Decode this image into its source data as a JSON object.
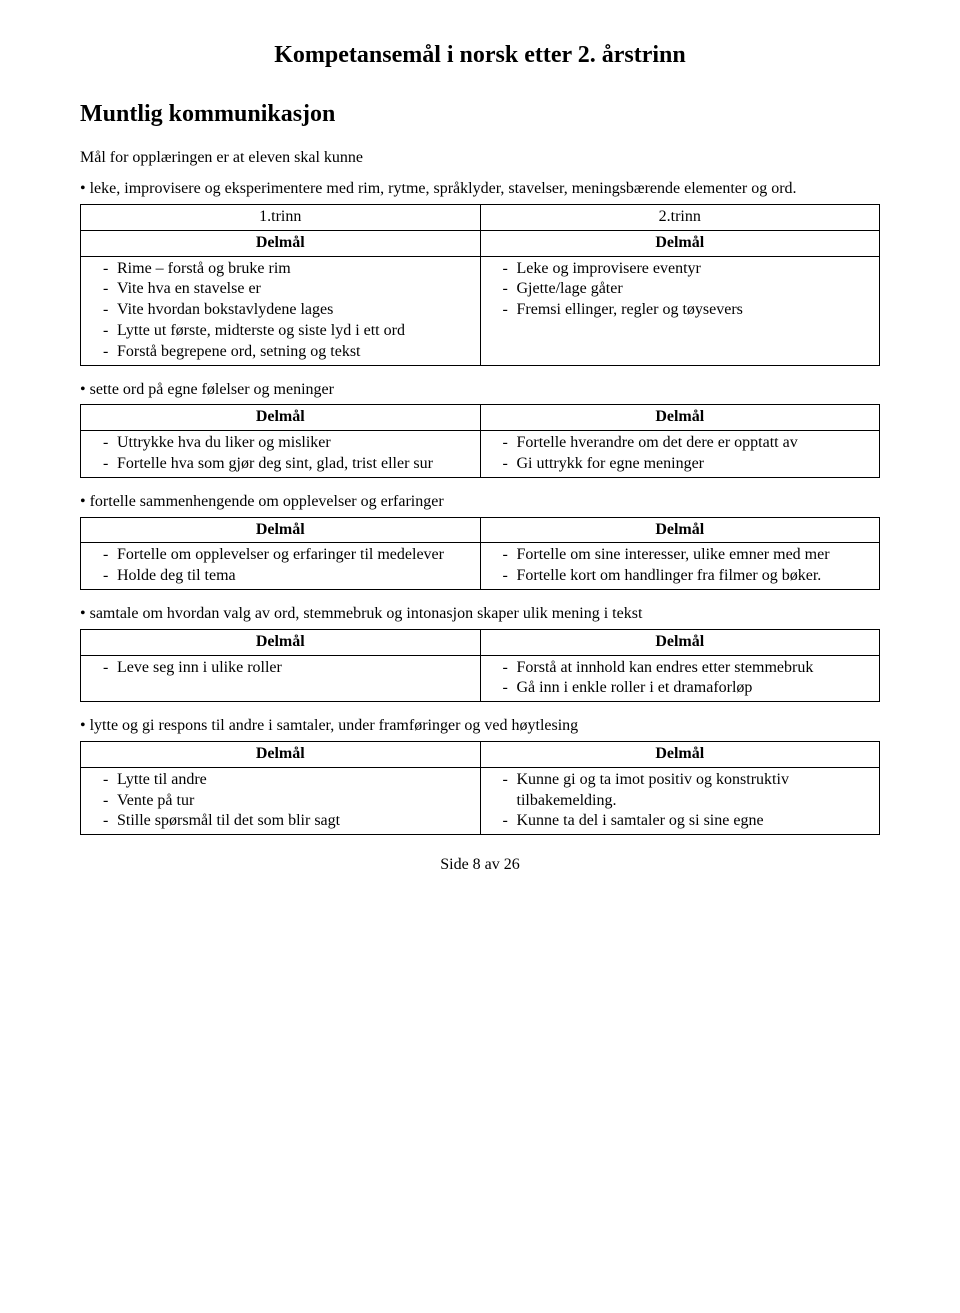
{
  "title": "Kompetansemål i norsk etter 2. årstrinn",
  "section_heading": "Muntlig kommunikasjon",
  "intro": "Mål for opplæringen er at eleven skal kunne",
  "bullets": {
    "b1": "• leke, improvisere og eksperimentere med rim, rytme, språklyder, stavelser, meningsbærende elementer og ord.",
    "b2": "• sette ord på egne følelser og meninger",
    "b3": "• fortelle sammenhengende om opplevelser og erfaringer",
    "b4": "• samtale om hvordan valg av ord, stemmebruk og intonasjon skaper ulik mening i tekst",
    "b5": "• lytte og gi respons til andre i samtaler, under framføringer og ved høytlesing"
  },
  "trinn": {
    "left": "1.trinn",
    "right": "2.trinn"
  },
  "delmal_label": "Delmål",
  "tables": {
    "t1": {
      "left": [
        "Rime – forstå og bruke rim",
        "Vite hva en stavelse er",
        "Vite hvordan bokstavlydene lages",
        "Lytte ut første, midterste og siste lyd i ett ord",
        "Forstå begrepene ord, setning og tekst"
      ],
      "right": [
        "Leke og improvisere eventyr",
        "Gjette/lage gåter",
        "Fremsi ellinger, regler og tøysevers"
      ]
    },
    "t2": {
      "left": [
        "Uttrykke  hva du liker og misliker",
        "Fortelle hva som gjør deg sint, glad, trist eller sur"
      ],
      "right": [
        "Fortelle hverandre om det dere er opptatt av",
        "Gi uttrykk for egne meninger"
      ]
    },
    "t3": {
      "left": [
        "Fortelle om opplevelser og erfaringer til medelever",
        "Holde deg til tema"
      ],
      "right": [
        "Fortelle om sine interesser, ulike emner med mer",
        "Fortelle kort om handlinger fra filmer og bøker."
      ]
    },
    "t4": {
      "left": [
        "Leve seg inn i ulike roller"
      ],
      "right": [
        "Forstå at innhold kan endres etter stemmebruk",
        "Gå inn i enkle roller i et dramaforløp"
      ]
    },
    "t5": {
      "left": [
        "Lytte til andre",
        "Vente på tur",
        "Stille spørsmål til det som blir sagt"
      ],
      "right": [
        "Kunne gi og ta imot positiv og konstruktiv tilbakemelding.",
        "Kunne ta del i samtaler og si sine egne"
      ]
    }
  },
  "footer": "Side 8 av 26"
}
